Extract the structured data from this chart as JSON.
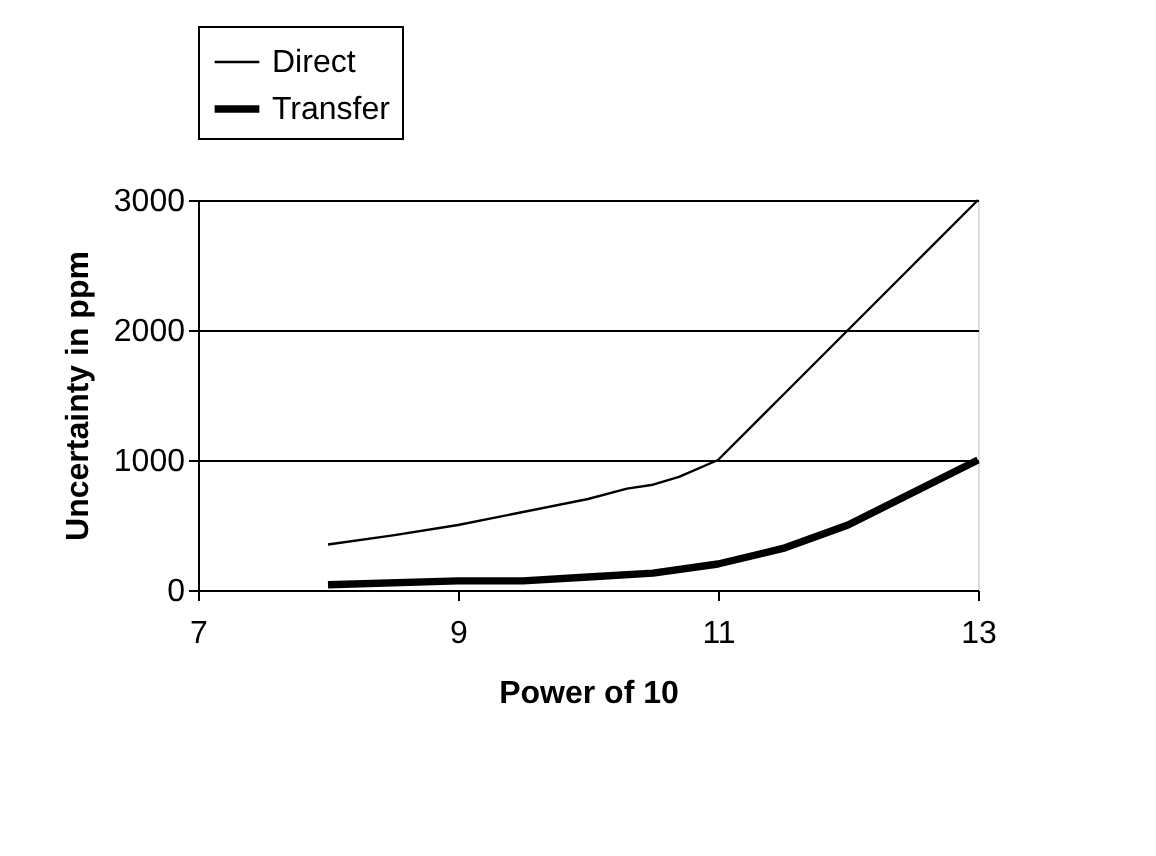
{
  "chart_data": {
    "type": "line",
    "xlabel": "Power of 10",
    "ylabel": "Uncertainty in ppm",
    "xlim": [
      7,
      13
    ],
    "xticks": [
      7,
      9,
      11,
      13
    ],
    "ylim": [
      0,
      3000
    ],
    "yticks": [
      0,
      1000,
      2000,
      3000
    ],
    "grid": "y",
    "legend": "top",
    "marker": "none",
    "series": [
      {
        "name": "Direct",
        "color": "#000000",
        "x": [
          8,
          8.5,
          9,
          9.5,
          10,
          10.3,
          10.5,
          10.7,
          11,
          11.5,
          11.8,
          12,
          12.5,
          13
        ],
        "values": [
          350,
          420,
          500,
          600,
          700,
          780,
          810,
          870,
          1000,
          1500,
          1800,
          2000,
          2500,
          3000
        ]
      },
      {
        "name": "Transfer",
        "color": "#000000",
        "x": [
          8,
          9,
          9.5,
          10,
          10.5,
          11,
          11.5,
          12,
          12.5,
          13
        ],
        "values": [
          40,
          70,
          70,
          100,
          130,
          200,
          320,
          500,
          750,
          1000
        ]
      }
    ]
  }
}
